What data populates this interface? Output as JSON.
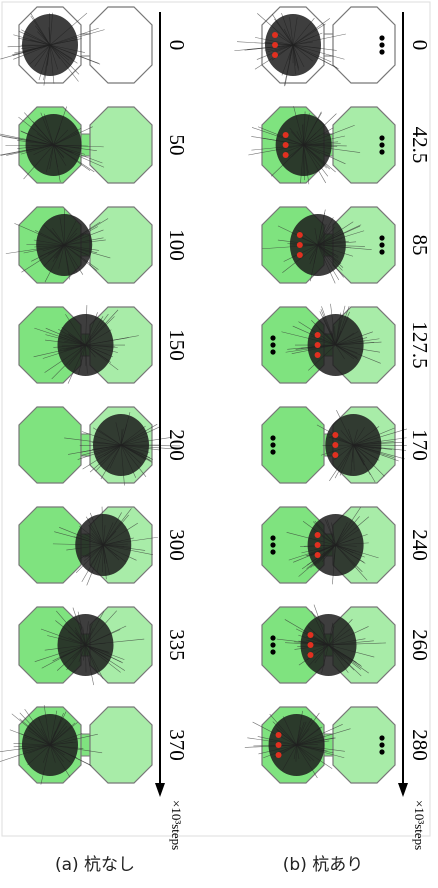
{
  "figure": {
    "unit": "×10³steps",
    "columns": [
      {
        "caption": "(a) 杭なし",
        "steps": [
          0,
          50,
          100,
          150,
          200,
          300,
          335,
          370
        ]
      },
      {
        "caption": "(b) 杭あり",
        "steps": [
          0,
          42.5,
          85,
          127.5,
          170,
          240,
          260,
          280
        ]
      }
    ]
  }
}
